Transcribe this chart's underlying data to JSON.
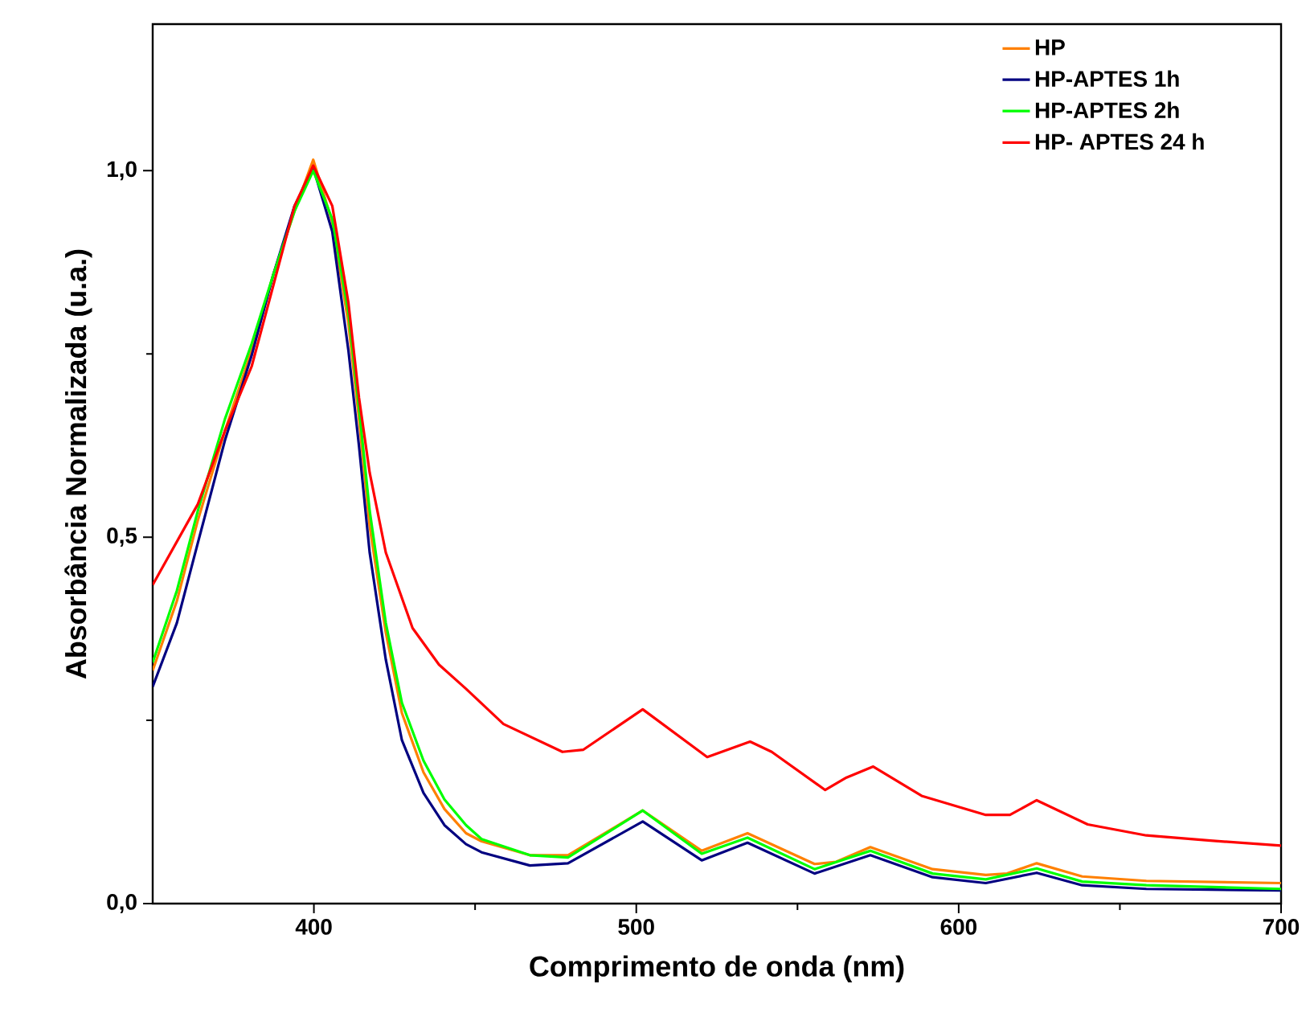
{
  "chart_data": {
    "type": "line",
    "xlabel": "Comprimento de onda (nm)",
    "ylabel": "Absorbância Normalizada (u.a.)",
    "xlim": [
      350,
      700
    ],
    "xticks": [
      400,
      500,
      600,
      700
    ],
    "ylim": [
      0,
      1.2
    ],
    "yticks": [
      {
        "value": 0,
        "label": "0,0"
      },
      {
        "value": 0.5,
        "label": "0,5"
      },
      {
        "value": 1,
        "label": "1,0"
      }
    ],
    "legend": "top right",
    "grid": false,
    "marker": "none",
    "line_style": "solid",
    "series": [
      {
        "name": "HP",
        "color": "#ff8000",
        "x": [
          350,
          357.5,
          364,
          372.4,
          380.7,
          387.4,
          394,
          399.8,
          405.7,
          410.7,
          414,
          417.3,
          422.3,
          427.3,
          434,
          440.5,
          447.2,
          452,
          467,
          478.8,
          502,
          520.3,
          534.5,
          555.3,
          562,
          572.6,
          591.9,
          608.4,
          615,
          624.2,
          638.3,
          658.2,
          700
        ],
        "values": [
          0.318,
          0.413,
          0.523,
          0.645,
          0.755,
          0.858,
          0.945,
          1.015,
          0.93,
          0.792,
          0.661,
          0.515,
          0.37,
          0.26,
          0.179,
          0.129,
          0.096,
          0.085,
          0.066,
          0.066,
          0.127,
          0.072,
          0.096,
          0.054,
          0.057,
          0.077,
          0.047,
          0.039,
          0.041,
          0.055,
          0.037,
          0.031,
          0.028
        ]
      },
      {
        "name": "HP-APTES 1h",
        "color": "#000080",
        "x": [
          350,
          357.5,
          364,
          372.4,
          380.7,
          387.4,
          394,
          399.8,
          405.7,
          410.7,
          414,
          417.3,
          422.3,
          427.3,
          434,
          440.5,
          447.2,
          452,
          467,
          478.8,
          502,
          520.3,
          534.5,
          555.3,
          572.6,
          591.9,
          608.4,
          624.2,
          638.3,
          658.2,
          700
        ],
        "values": [
          0.296,
          0.383,
          0.492,
          0.632,
          0.748,
          0.858,
          0.952,
          1.004,
          0.917,
          0.755,
          0.624,
          0.479,
          0.333,
          0.223,
          0.151,
          0.107,
          0.081,
          0.07,
          0.052,
          0.055,
          0.112,
          0.059,
          0.083,
          0.041,
          0.066,
          0.036,
          0.028,
          0.042,
          0.025,
          0.02,
          0.018
        ]
      },
      {
        "name": "HP-APTES 2h",
        "color": "#00ff00",
        "x": [
          350,
          357.5,
          364,
          372.4,
          380.7,
          387.4,
          394,
          399.8,
          405.7,
          410.7,
          414,
          417.3,
          422.3,
          427.3,
          434,
          440.5,
          447.2,
          452,
          467,
          478.8,
          502,
          520.3,
          534.5,
          555.3,
          572.6,
          591.9,
          608.4,
          624.2,
          638.3,
          658.2,
          700
        ],
        "values": [
          0.329,
          0.427,
          0.536,
          0.661,
          0.764,
          0.858,
          0.945,
          1.0,
          0.934,
          0.807,
          0.676,
          0.536,
          0.383,
          0.274,
          0.195,
          0.142,
          0.107,
          0.088,
          0.066,
          0.063,
          0.127,
          0.068,
          0.09,
          0.047,
          0.072,
          0.041,
          0.033,
          0.048,
          0.03,
          0.025,
          0.02
        ]
      },
      {
        "name": "HP- APTES 24 h",
        "color": "#ff0000",
        "x": [
          350,
          364,
          372.4,
          380.7,
          387.4,
          394,
          399.8,
          405.7,
          410.7,
          414,
          417.3,
          422.3,
          430.6,
          438.8,
          447.2,
          458.8,
          477.1,
          483.6,
          502,
          522,
          535.3,
          542,
          558.6,
          565.2,
          573.5,
          588.5,
          608.4,
          615.9,
          624.2,
          640,
          658.2,
          678.1,
          700
        ],
        "values": [
          0.435,
          0.545,
          0.645,
          0.733,
          0.843,
          0.952,
          1.007,
          0.952,
          0.82,
          0.69,
          0.588,
          0.479,
          0.376,
          0.326,
          0.293,
          0.245,
          0.207,
          0.21,
          0.265,
          0.2,
          0.221,
          0.207,
          0.155,
          0.172,
          0.187,
          0.147,
          0.121,
          0.121,
          0.141,
          0.108,
          0.093,
          0.086,
          0.079
        ]
      }
    ]
  }
}
